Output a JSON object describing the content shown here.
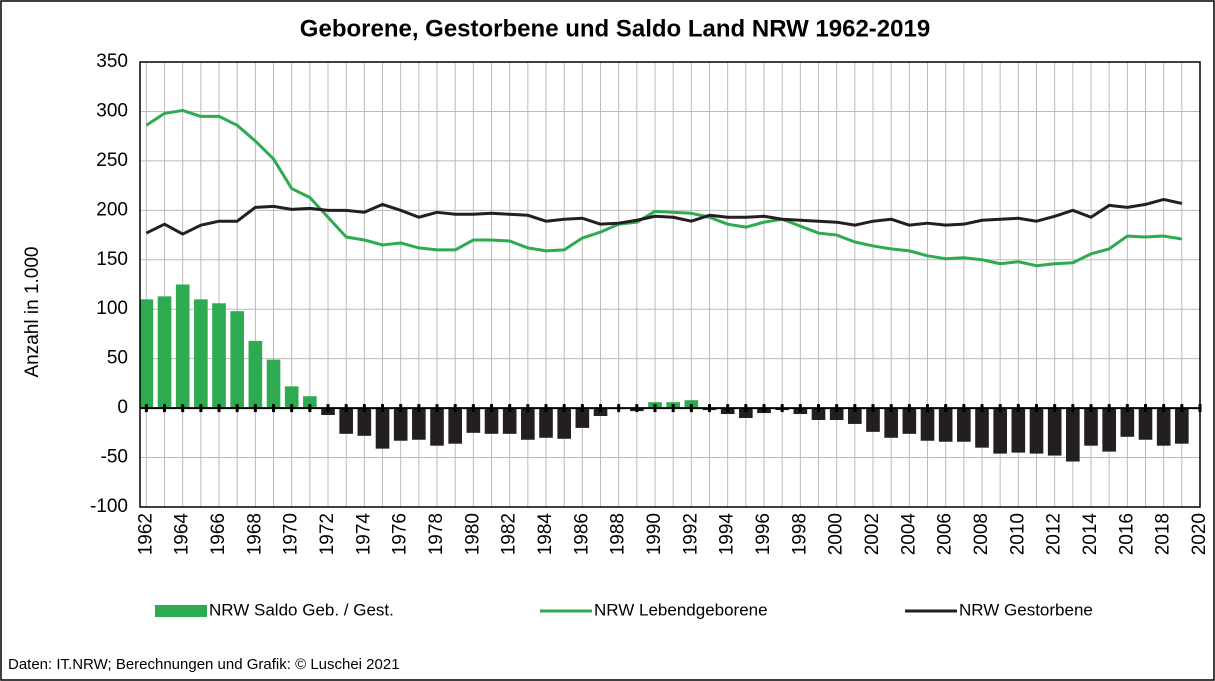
{
  "chart_data": {
    "type": "bar-line",
    "title": "Geborene, Gestorbene und Saldo Land NRW 1962-2019",
    "y_label": "Anzahl in  1.000",
    "source": "Daten: IT.NRW; Berechnungen und Grafik: © Luschei 2021",
    "categories": [
      "1962",
      null,
      "1964",
      null,
      "1966",
      null,
      "1968",
      null,
      "1970",
      null,
      "1972",
      null,
      "1974",
      null,
      "1976",
      null,
      "1978",
      null,
      "1980",
      null,
      "1982",
      null,
      "1984",
      null,
      "1986",
      null,
      "1988",
      null,
      "1990",
      null,
      "1992",
      null,
      "1994",
      null,
      "1996",
      null,
      "1998",
      null,
      "2000",
      null,
      "2002",
      null,
      "2004",
      null,
      "2006",
      null,
      "2008",
      null,
      "2010",
      null,
      "2012",
      null,
      "2014",
      null,
      "2016",
      null,
      "2018",
      null,
      "2020"
    ],
    "series": [
      {
        "name": "NRW Saldo Geb. / Gest.",
        "type": "bar",
        "color": "#2eaa50",
        "negative_color": "#231f20",
        "values": [
          110,
          113,
          125,
          110,
          106,
          98,
          68,
          49,
          22,
          12,
          -7,
          -26,
          -28,
          -41,
          -33,
          -32,
          -38,
          -36,
          -25,
          -26,
          -26,
          -32,
          -30,
          -31,
          -20,
          -8,
          -1,
          -3,
          6,
          6,
          8,
          -2,
          -6,
          -10,
          -5,
          -2,
          -6,
          -12,
          -12,
          -16,
          -24,
          -30,
          -26,
          -33,
          -34,
          -34,
          -40,
          -46,
          -45,
          -46,
          -48,
          -54,
          -38,
          -44,
          -29,
          -32,
          -38,
          -36,
          null
        ]
      },
      {
        "name": "NRW Lebendgeborene",
        "type": "line",
        "color": "#2eaa50",
        "values": [
          286,
          298,
          301,
          295,
          295,
          286,
          270,
          252,
          222,
          213,
          193,
          173,
          170,
          165,
          167,
          162,
          160,
          160,
          170,
          170,
          169,
          162,
          159,
          160,
          172,
          178,
          186,
          188,
          199,
          198,
          197,
          193,
          186,
          183,
          188,
          191,
          184,
          177,
          175,
          168,
          164,
          161,
          159,
          154,
          151,
          152,
          150,
          146,
          148,
          144,
          146,
          147,
          156,
          161,
          174,
          173,
          174,
          171,
          null
        ]
      },
      {
        "name": "NRW Gestorbene",
        "type": "line",
        "color": "#231f20",
        "values": [
          177,
          186,
          176,
          185,
          189,
          189,
          203,
          204,
          201,
          202,
          200,
          200,
          198,
          206,
          200,
          193,
          198,
          196,
          196,
          197,
          196,
          195,
          189,
          191,
          192,
          186,
          187,
          190,
          194,
          193,
          189,
          195,
          193,
          193,
          194,
          191,
          190,
          189,
          188,
          185,
          189,
          191,
          185,
          187,
          185,
          186,
          190,
          191,
          192,
          189,
          194,
          200,
          193,
          205,
          203,
          206,
          211,
          207,
          null
        ]
      }
    ],
    "ylim": [
      -100,
      350
    ],
    "yticks": [
      -100,
      -50,
      0,
      50,
      100,
      150,
      200,
      250,
      300,
      350
    ],
    "grid": true
  }
}
